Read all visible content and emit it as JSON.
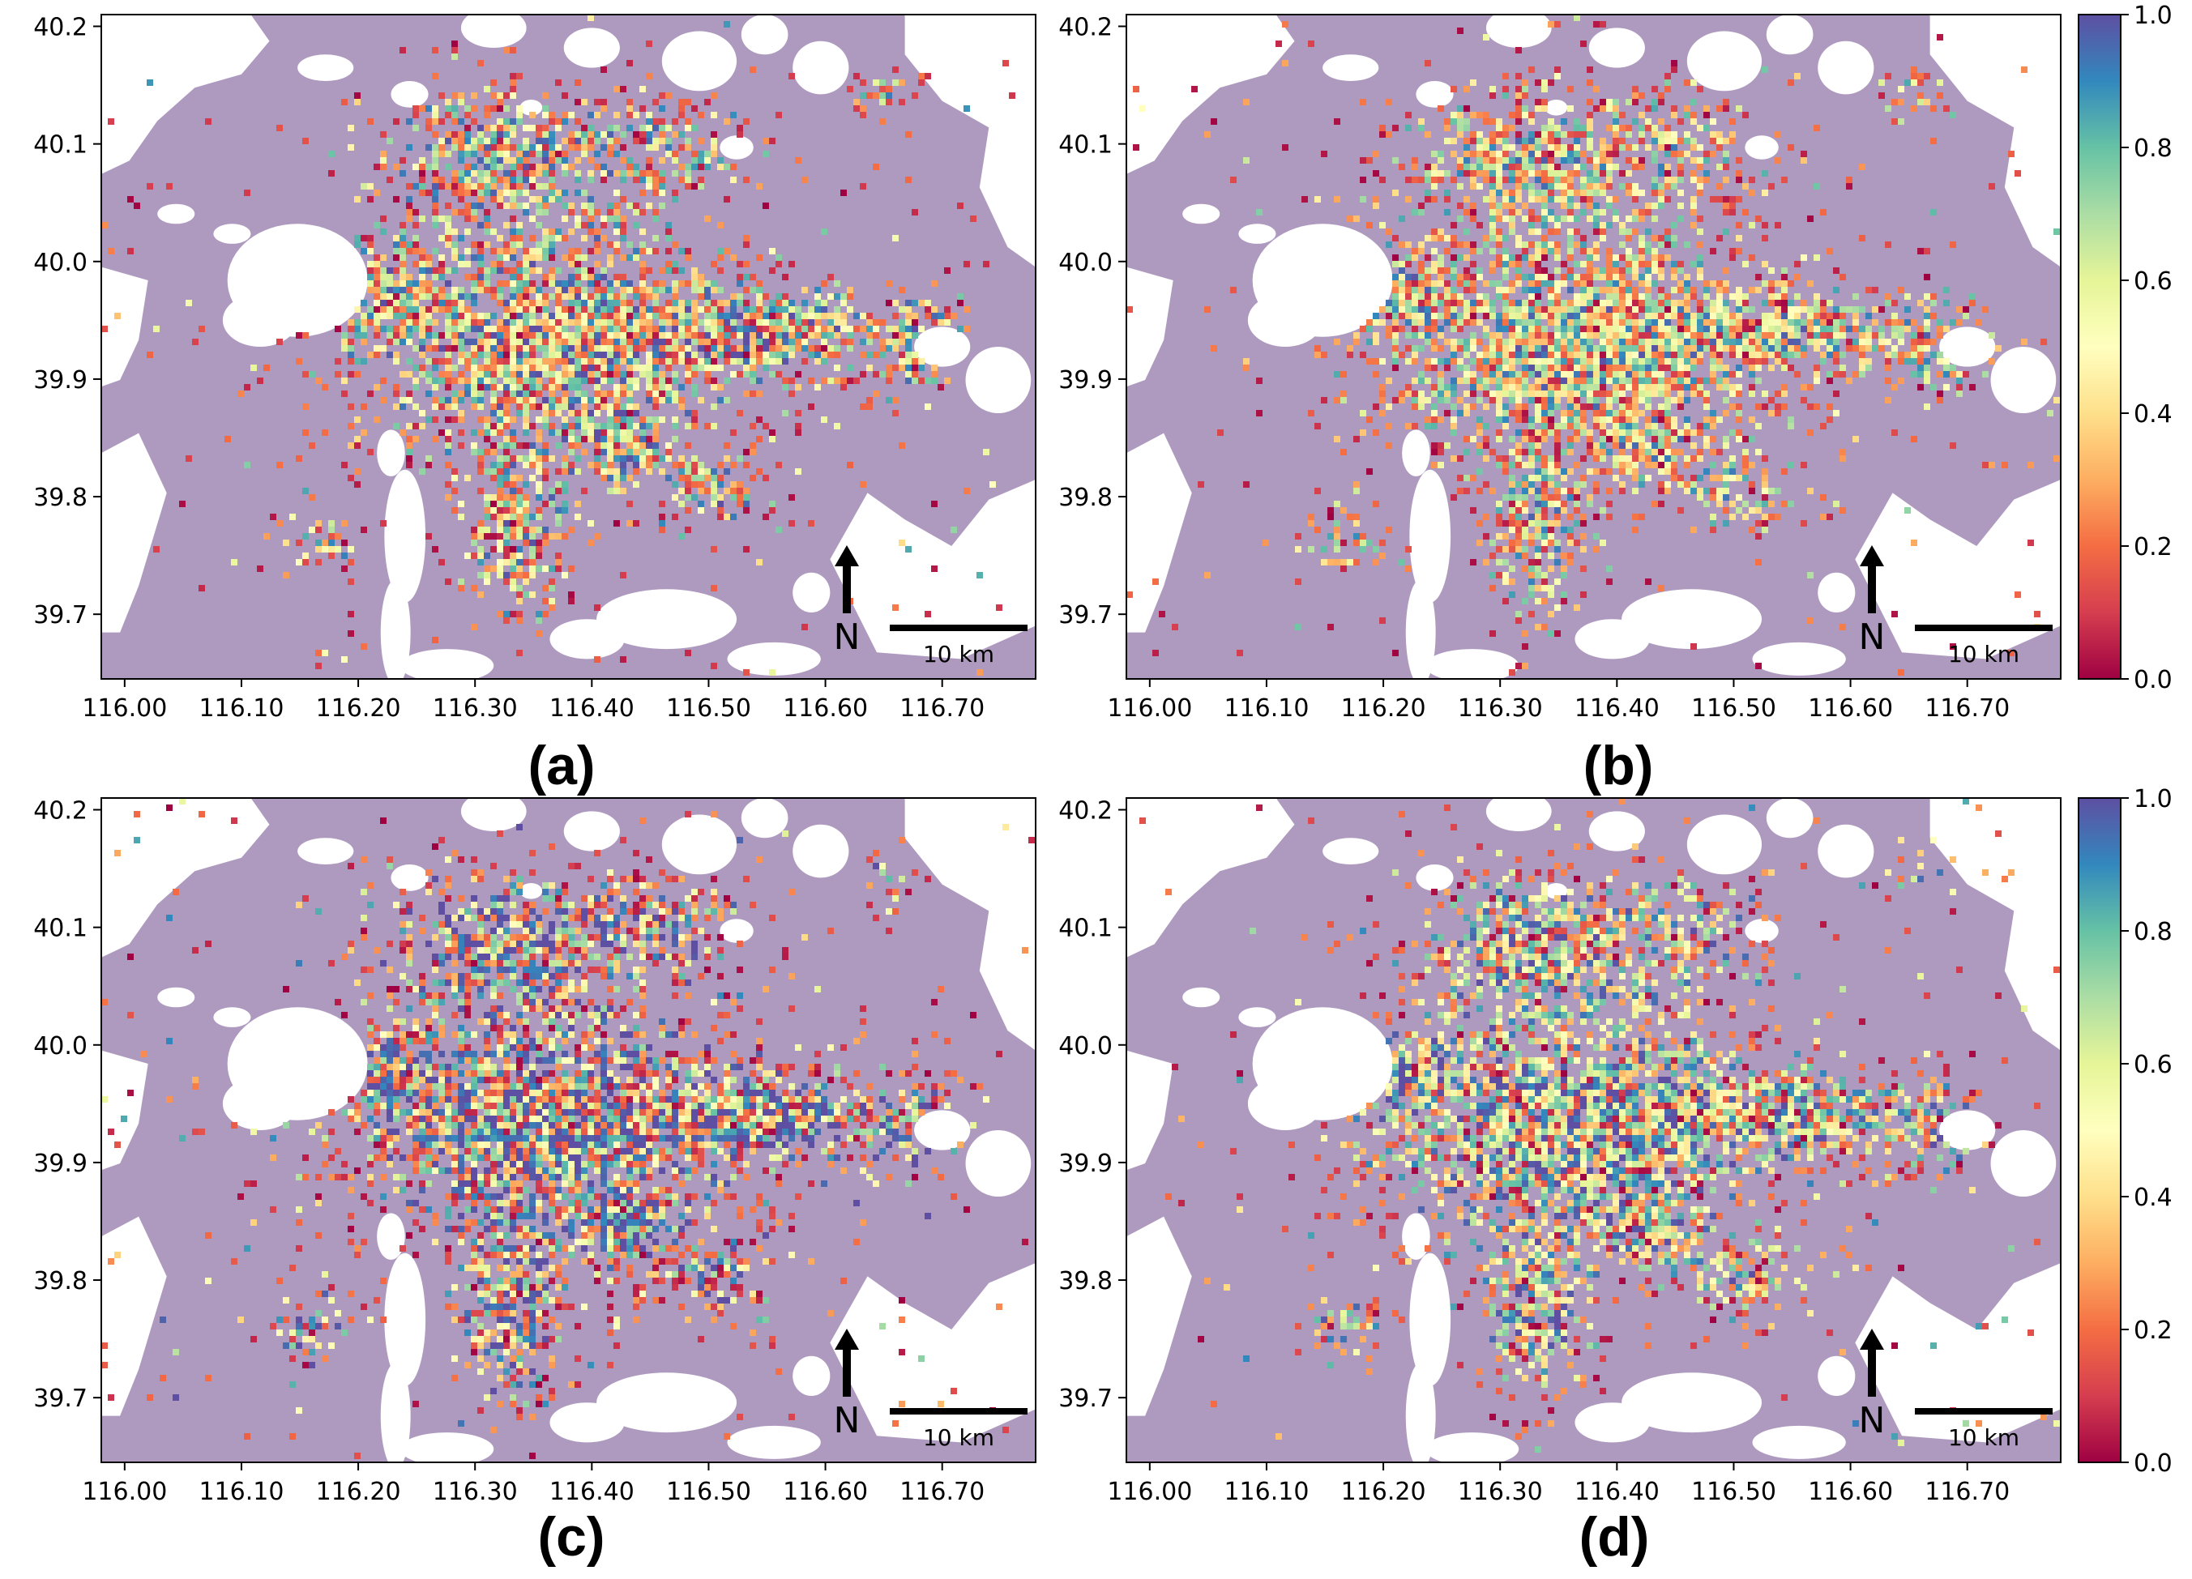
{
  "figure": {
    "x_ticks": [
      "116.00",
      "116.10",
      "116.20",
      "116.30",
      "116.40",
      "116.50",
      "116.60",
      "116.70"
    ],
    "y_ticks": [
      "40.2",
      "40.1",
      "40.0",
      "39.9",
      "39.8",
      "39.7"
    ],
    "north_label": "N",
    "scale_label": "10 km",
    "colors": {
      "background_land": "#ae9abf",
      "mask": "#ffffff",
      "colormap": "Spectral",
      "colormap_stops": [
        "#9e0142",
        "#d53e4f",
        "#f46d43",
        "#fdae61",
        "#fee08b",
        "#ffffbf",
        "#e6f598",
        "#abdda4",
        "#66c2a5",
        "#3288bd",
        "#5e4fa2"
      ]
    },
    "colorbar": {
      "ticks": [
        "0.0",
        "0.2",
        "0.4",
        "0.6",
        "0.8",
        "1.0"
      ],
      "range": [
        0.0,
        1.0
      ]
    },
    "panels": [
      {
        "id": "a",
        "label": "(a)"
      },
      {
        "id": "b",
        "label": "(b)"
      },
      {
        "id": "c",
        "label": "(c)"
      },
      {
        "id": "d",
        "label": "(d)"
      }
    ]
  },
  "chart_data": [
    {
      "type": "heatmap",
      "panel": "(a)",
      "xlim": [
        115.98,
        116.78
      ],
      "ylim": [
        39.645,
        40.21
      ],
      "value_range": [
        0.0,
        1.0
      ]
    },
    {
      "type": "heatmap",
      "panel": "(b)",
      "xlim": [
        115.98,
        116.78
      ],
      "ylim": [
        39.645,
        40.21
      ],
      "value_range": [
        0.0,
        1.0
      ]
    },
    {
      "type": "heatmap",
      "panel": "(c)",
      "xlim": [
        115.98,
        116.78
      ],
      "ylim": [
        39.645,
        40.21
      ],
      "value_range": [
        0.0,
        1.0
      ]
    },
    {
      "type": "heatmap",
      "panel": "(d)",
      "xlim": [
        115.98,
        116.78
      ],
      "ylim": [
        39.645,
        40.21
      ],
      "value_range": [
        0.0,
        1.0
      ]
    }
  ]
}
